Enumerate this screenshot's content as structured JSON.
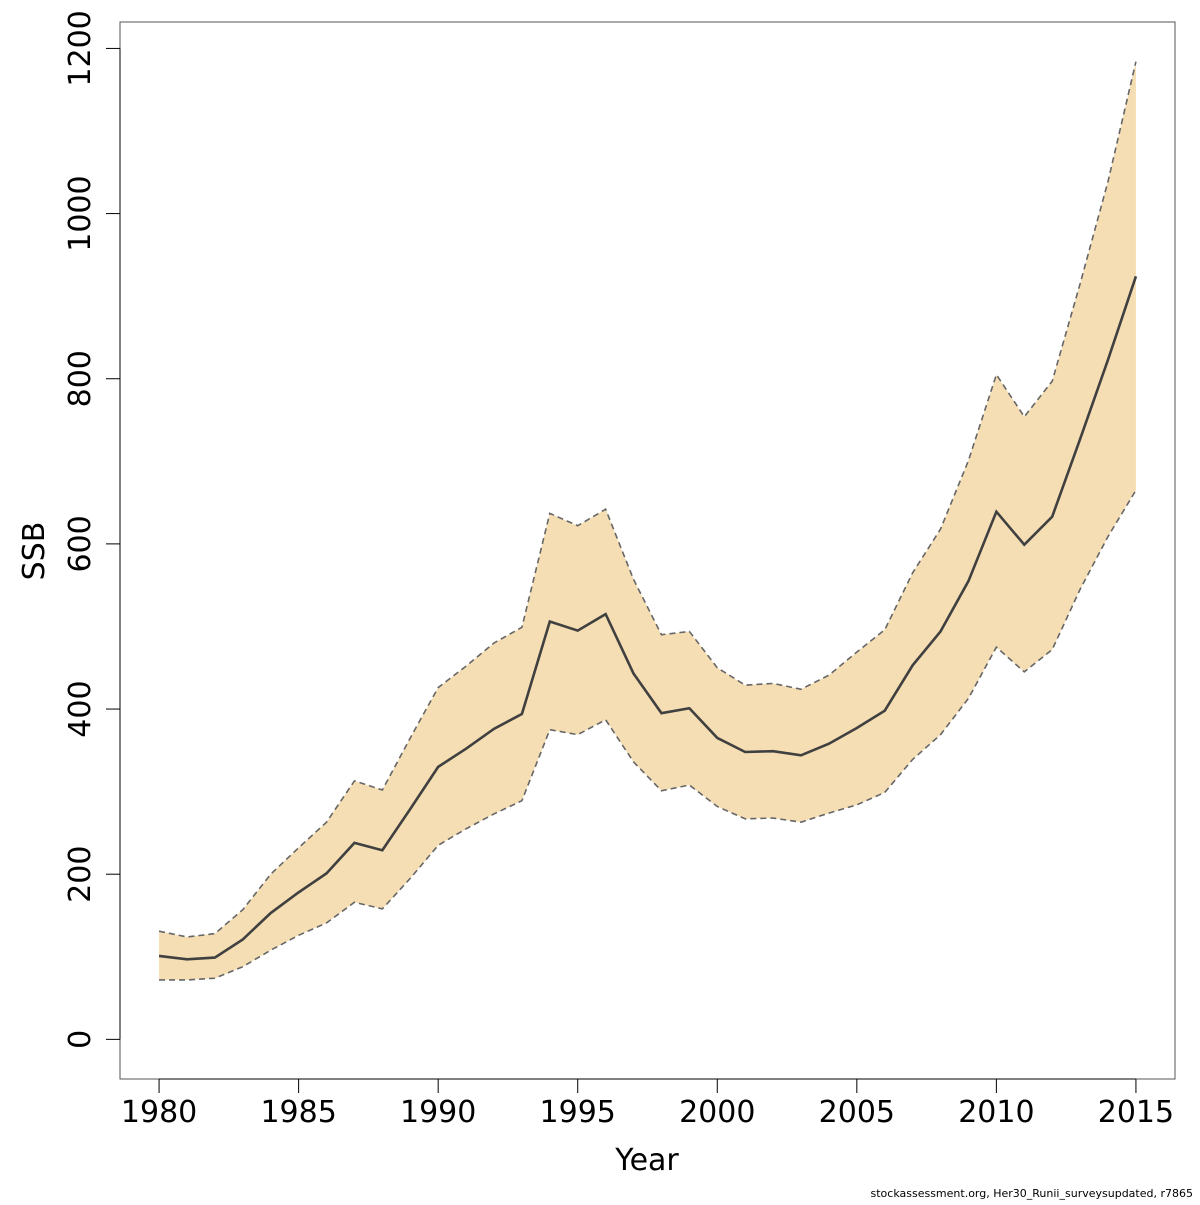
{
  "colors": {
    "band_fill": "#f5deb3",
    "band_edge": "#666666",
    "line": "#404040",
    "frame": "#555555"
  },
  "footer": {
    "note": "stockassessment.org, Her30_Runii_surveysupdated, r7865"
  },
  "chart_data": {
    "type": "line",
    "title": "",
    "xlabel": "Year",
    "ylabel": "SSB",
    "xlim": [
      1978.6,
      2016.4
    ],
    "ylim": [
      -48,
      1232
    ],
    "grid": false,
    "legend": "none",
    "x_ticks": [
      1980,
      1985,
      1990,
      1995,
      2000,
      2005,
      2010,
      2015
    ],
    "x_tick_labels": [
      "1980",
      "1985",
      "1990",
      "1995",
      "2000",
      "2005",
      "2010",
      "2015"
    ],
    "y_ticks": [
      0,
      200,
      400,
      600,
      800,
      1000,
      1200
    ],
    "y_tick_labels": [
      "0",
      "200",
      "400",
      "600",
      "800",
      "1000",
      "1200"
    ],
    "x": [
      1980,
      1981,
      1982,
      1983,
      1984,
      1985,
      1986,
      1987,
      1988,
      1989,
      1990,
      1991,
      1992,
      1993,
      1994,
      1995,
      1996,
      1997,
      1998,
      1999,
      2000,
      2001,
      2002,
      2003,
      2004,
      2005,
      2006,
      2007,
      2008,
      2009,
      2010,
      2011,
      2012,
      2013,
      2014,
      2015
    ],
    "series": [
      {
        "role": "estimate",
        "style": "solid",
        "values": [
          101,
          97,
          99,
          121,
          153,
          178,
          201,
          238,
          229,
          279,
          330,
          352,
          376,
          394,
          506,
          495,
          515,
          443,
          395,
          401,
          365,
          348,
          349,
          344,
          358,
          377,
          398,
          453,
          494,
          555,
          639,
          599,
          633,
          727,
          823,
          924
        ]
      },
      {
        "role": "upper",
        "style": "dashed",
        "values": [
          131,
          124,
          128,
          157,
          200,
          232,
          263,
          313,
          302,
          365,
          426,
          452,
          480,
          499,
          637,
          622,
          642,
          557,
          490,
          494,
          450,
          429,
          431,
          424,
          441,
          469,
          496,
          565,
          618,
          701,
          805,
          754,
          797,
          915,
          1039,
          1184
        ]
      },
      {
        "role": "lower",
        "style": "dashed",
        "values": [
          72,
          72,
          74,
          88,
          108,
          126,
          141,
          166,
          158,
          195,
          235,
          255,
          273,
          289,
          375,
          369,
          387,
          336,
          301,
          308,
          282,
          267,
          268,
          263,
          274,
          284,
          299,
          339,
          369,
          413,
          475,
          445,
          472,
          545,
          609,
          665
        ]
      }
    ]
  }
}
